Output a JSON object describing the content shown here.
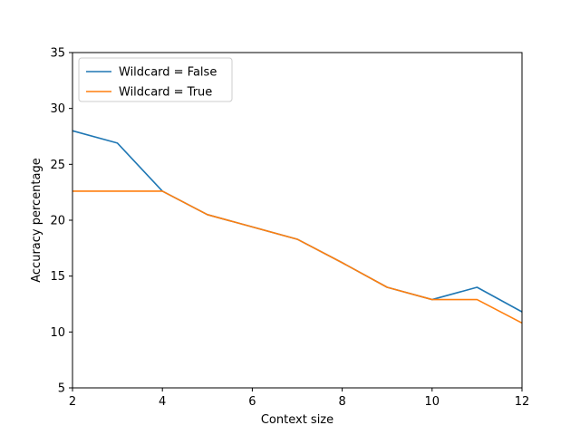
{
  "chart_data": {
    "type": "line",
    "title": "",
    "xlabel": "Context size",
    "ylabel": "Accuracy percentage",
    "xlim": [
      2,
      12
    ],
    "ylim": [
      5,
      35
    ],
    "xticks": [
      2,
      4,
      6,
      8,
      10,
      12
    ],
    "yticks": [
      5,
      10,
      15,
      20,
      25,
      30,
      35
    ],
    "grid": false,
    "legend_position": "top-left",
    "series": [
      {
        "name": "Wildcard = False",
        "color": "#1f77b4",
        "x": [
          2,
          3,
          4,
          5,
          6,
          7,
          8,
          9,
          10,
          11,
          12
        ],
        "y": [
          28.0,
          26.9,
          22.6,
          20.5,
          19.4,
          18.3,
          16.2,
          14.0,
          12.9,
          14.0,
          11.8
        ]
      },
      {
        "name": "Wildcard = True",
        "color": "#ff7f0e",
        "x": [
          2,
          3,
          4,
          5,
          6,
          7,
          8,
          9,
          10,
          11,
          12
        ],
        "y": [
          22.6,
          22.6,
          22.6,
          20.5,
          19.4,
          18.3,
          16.2,
          14.0,
          12.9,
          12.9,
          10.8
        ]
      }
    ]
  }
}
